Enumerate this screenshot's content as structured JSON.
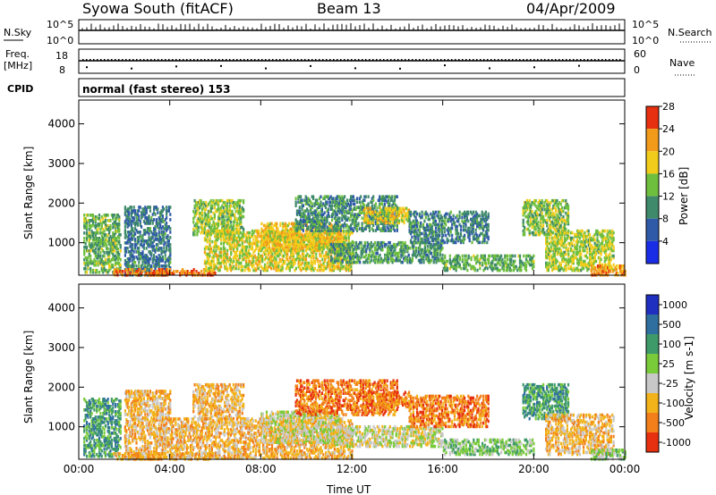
{
  "header": {
    "station": "Syowa South (fitACF)",
    "beam": "Beam 13",
    "date": "04/Apr/2009"
  },
  "params": {
    "nsky_label": "N.Sky",
    "nsearch_label": "N.Search",
    "nsky_ticks": [
      "10^5",
      "10^0"
    ],
    "nsearch_ticks": [
      "10^5",
      "10^0"
    ],
    "freq_label_line1": "Freq.",
    "freq_label_line2": "[MHz]",
    "freq_ticks": [
      "18",
      "8"
    ],
    "nave_label": "Nave",
    "nave_ticks": [
      "60",
      "0"
    ],
    "cpid_label": "CPID",
    "cpid_text": "normal (fast stereo) 153"
  },
  "chart_data": [
    {
      "type": "heatmap",
      "name": "power",
      "ylabel": "Slant Range [km]",
      "xlabel": "",
      "x_ticks": [
        "00:00",
        "04:00",
        "08:00",
        "12:00",
        "16:00",
        "20:00",
        "00:00"
      ],
      "x_range_hours": [
        0,
        24
      ],
      "y_ticks": [
        1000,
        2000,
        3000,
        4000
      ],
      "ylim": [
        180,
        4600
      ],
      "colorbar": {
        "label": "Power [dB]",
        "ticks": [
          "4",
          "8",
          "12",
          "16",
          "20",
          "24",
          "28"
        ],
        "range": [
          0,
          30
        ],
        "colors": [
          "#1a2de6",
          "#2f5aa8",
          "#3f8a6a",
          "#6fbf3f",
          "#f2cc1a",
          "#f29a1a",
          "#e6300f"
        ]
      },
      "echo_regions": [
        {
          "t": [
            0.2,
            1.8
          ],
          "r": [
            250,
            1700
          ],
          "v": 14
        },
        {
          "t": [
            2.0,
            4.0
          ],
          "r": [
            180,
            1900
          ],
          "v": 8
        },
        {
          "t": [
            1.5,
            6.0
          ],
          "r": [
            180,
            350
          ],
          "v": 27
        },
        {
          "t": [
            5.0,
            7.2
          ],
          "r": [
            1200,
            2100
          ],
          "v": 16
        },
        {
          "t": [
            5.5,
            12.0
          ],
          "r": [
            300,
            1300
          ],
          "v": 19
        },
        {
          "t": [
            8.0,
            11.5
          ],
          "r": [
            800,
            1500
          ],
          "v": 21
        },
        {
          "t": [
            9.5,
            14.0
          ],
          "r": [
            1300,
            2200
          ],
          "v": 10
        },
        {
          "t": [
            12.5,
            14.5
          ],
          "r": [
            1500,
            1900
          ],
          "v": 20
        },
        {
          "t": [
            11.0,
            16.0
          ],
          "r": [
            500,
            1000
          ],
          "v": 11
        },
        {
          "t": [
            14.5,
            18.0
          ],
          "r": [
            1000,
            1800
          ],
          "v": 9
        },
        {
          "t": [
            16.0,
            20.0
          ],
          "r": [
            300,
            700
          ],
          "v": 13
        },
        {
          "t": [
            19.5,
            21.5
          ],
          "r": [
            1200,
            2100
          ],
          "v": 15
        },
        {
          "t": [
            20.5,
            23.5
          ],
          "r": [
            300,
            1300
          ],
          "v": 17
        },
        {
          "t": [
            22.5,
            24.0
          ],
          "r": [
            180,
            450
          ],
          "v": 25
        }
      ]
    },
    {
      "type": "heatmap",
      "name": "velocity",
      "ylabel": "Slant Range [km]",
      "xlabel": "Time UT",
      "x_ticks": [
        "00:00",
        "04:00",
        "08:00",
        "12:00",
        "16:00",
        "20:00",
        "00:00"
      ],
      "x_range_hours": [
        0,
        24
      ],
      "y_ticks": [
        1000,
        2000,
        3000,
        4000
      ],
      "ylim": [
        180,
        4600
      ],
      "colorbar": {
        "label": "Velocity [m s-1]",
        "ticks": [
          "1000",
          "500",
          "100",
          "25",
          "-25",
          "-100",
          "-500",
          "-1000"
        ],
        "colors": [
          "#1f2fbf",
          "#2f6f9f",
          "#3f9a6a",
          "#7acb3a",
          "#c8c8c8",
          "#f2b21a",
          "#f27f1a",
          "#e6300f"
        ]
      },
      "echo_regions": [
        {
          "t": [
            0.2,
            1.8
          ],
          "r": [
            250,
            1700
          ],
          "v": 2
        },
        {
          "t": [
            2.0,
            4.0
          ],
          "r": [
            180,
            1900
          ],
          "v": 5
        },
        {
          "t": [
            1.5,
            6.0
          ],
          "r": [
            180,
            350
          ],
          "v": 5
        },
        {
          "t": [
            5.0,
            7.2
          ],
          "r": [
            1200,
            2100
          ],
          "v": 5
        },
        {
          "t": [
            4.0,
            12.0
          ],
          "r": [
            200,
            1200
          ],
          "v": 5
        },
        {
          "t": [
            8.0,
            11.5
          ],
          "r": [
            600,
            1400
          ],
          "v": 4
        },
        {
          "t": [
            9.5,
            14.0
          ],
          "r": [
            1300,
            2200
          ],
          "v": 6
        },
        {
          "t": [
            12.5,
            14.5
          ],
          "r": [
            1500,
            1900
          ],
          "v": 6
        },
        {
          "t": [
            11.0,
            16.0
          ],
          "r": [
            500,
            1000
          ],
          "v": 4
        },
        {
          "t": [
            14.5,
            18.0
          ],
          "r": [
            1000,
            1800
          ],
          "v": 6
        },
        {
          "t": [
            16.0,
            20.0
          ],
          "r": [
            300,
            700
          ],
          "v": 3
        },
        {
          "t": [
            19.5,
            21.5
          ],
          "r": [
            1200,
            2100
          ],
          "v": 2
        },
        {
          "t": [
            20.5,
            23.5
          ],
          "r": [
            300,
            1300
          ],
          "v": 5
        },
        {
          "t": [
            22.5,
            24.0
          ],
          "r": [
            180,
            450
          ],
          "v": 3
        }
      ]
    }
  ]
}
